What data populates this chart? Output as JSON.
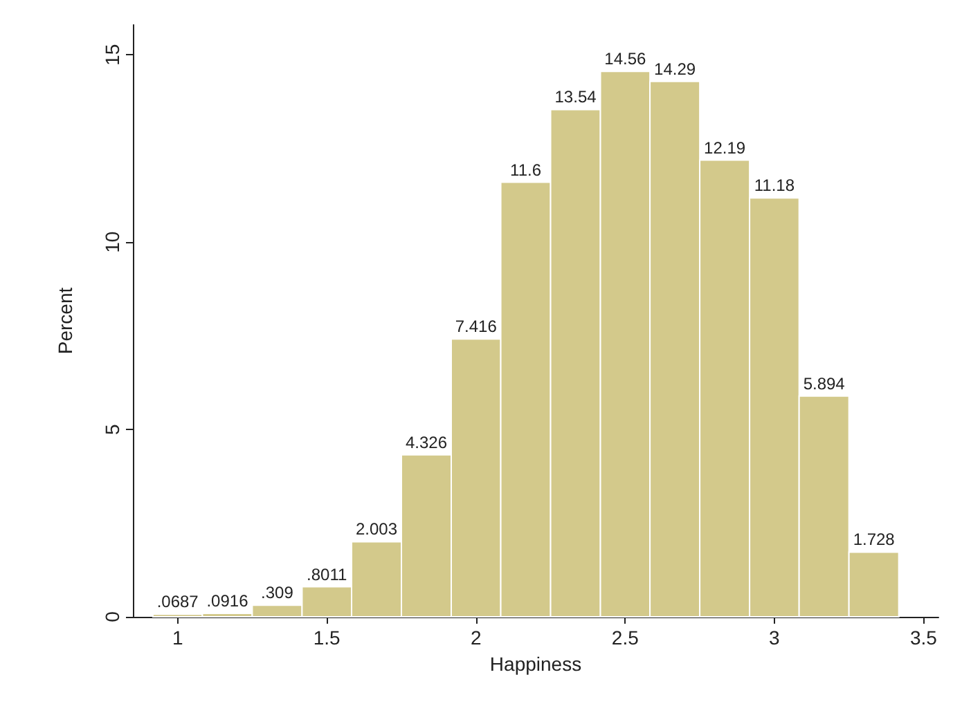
{
  "chart_data": {
    "type": "histogram",
    "xlabel": "Happiness",
    "ylabel": "Percent",
    "bins": [
      0.917,
      1.083,
      1.25,
      1.417,
      1.583,
      1.75,
      1.917,
      2.083,
      2.25,
      2.417,
      2.583,
      2.75,
      2.917,
      3.083,
      3.25,
      3.417
    ],
    "values": [
      0.0687,
      0.0916,
      0.309,
      0.8011,
      2.003,
      4.326,
      7.416,
      11.6,
      13.54,
      14.56,
      14.29,
      12.19,
      11.18,
      5.894,
      1.728
    ],
    "value_labels": [
      ".0687",
      ".0916",
      ".309",
      ".8011",
      "2.003",
      "4.326",
      "7.416",
      "11.6",
      "13.54",
      "14.56",
      "14.29",
      "12.19",
      "11.18",
      "5.894",
      "1.728"
    ],
    "color": "#d3c98b",
    "xlim": [
      0.85,
      3.55
    ],
    "xticks": [
      1,
      1.5,
      2,
      2.5,
      3,
      3.5
    ],
    "ylim": [
      0,
      15.8
    ],
    "yticks": [
      0,
      5,
      10,
      15
    ],
    "grid": false
  }
}
